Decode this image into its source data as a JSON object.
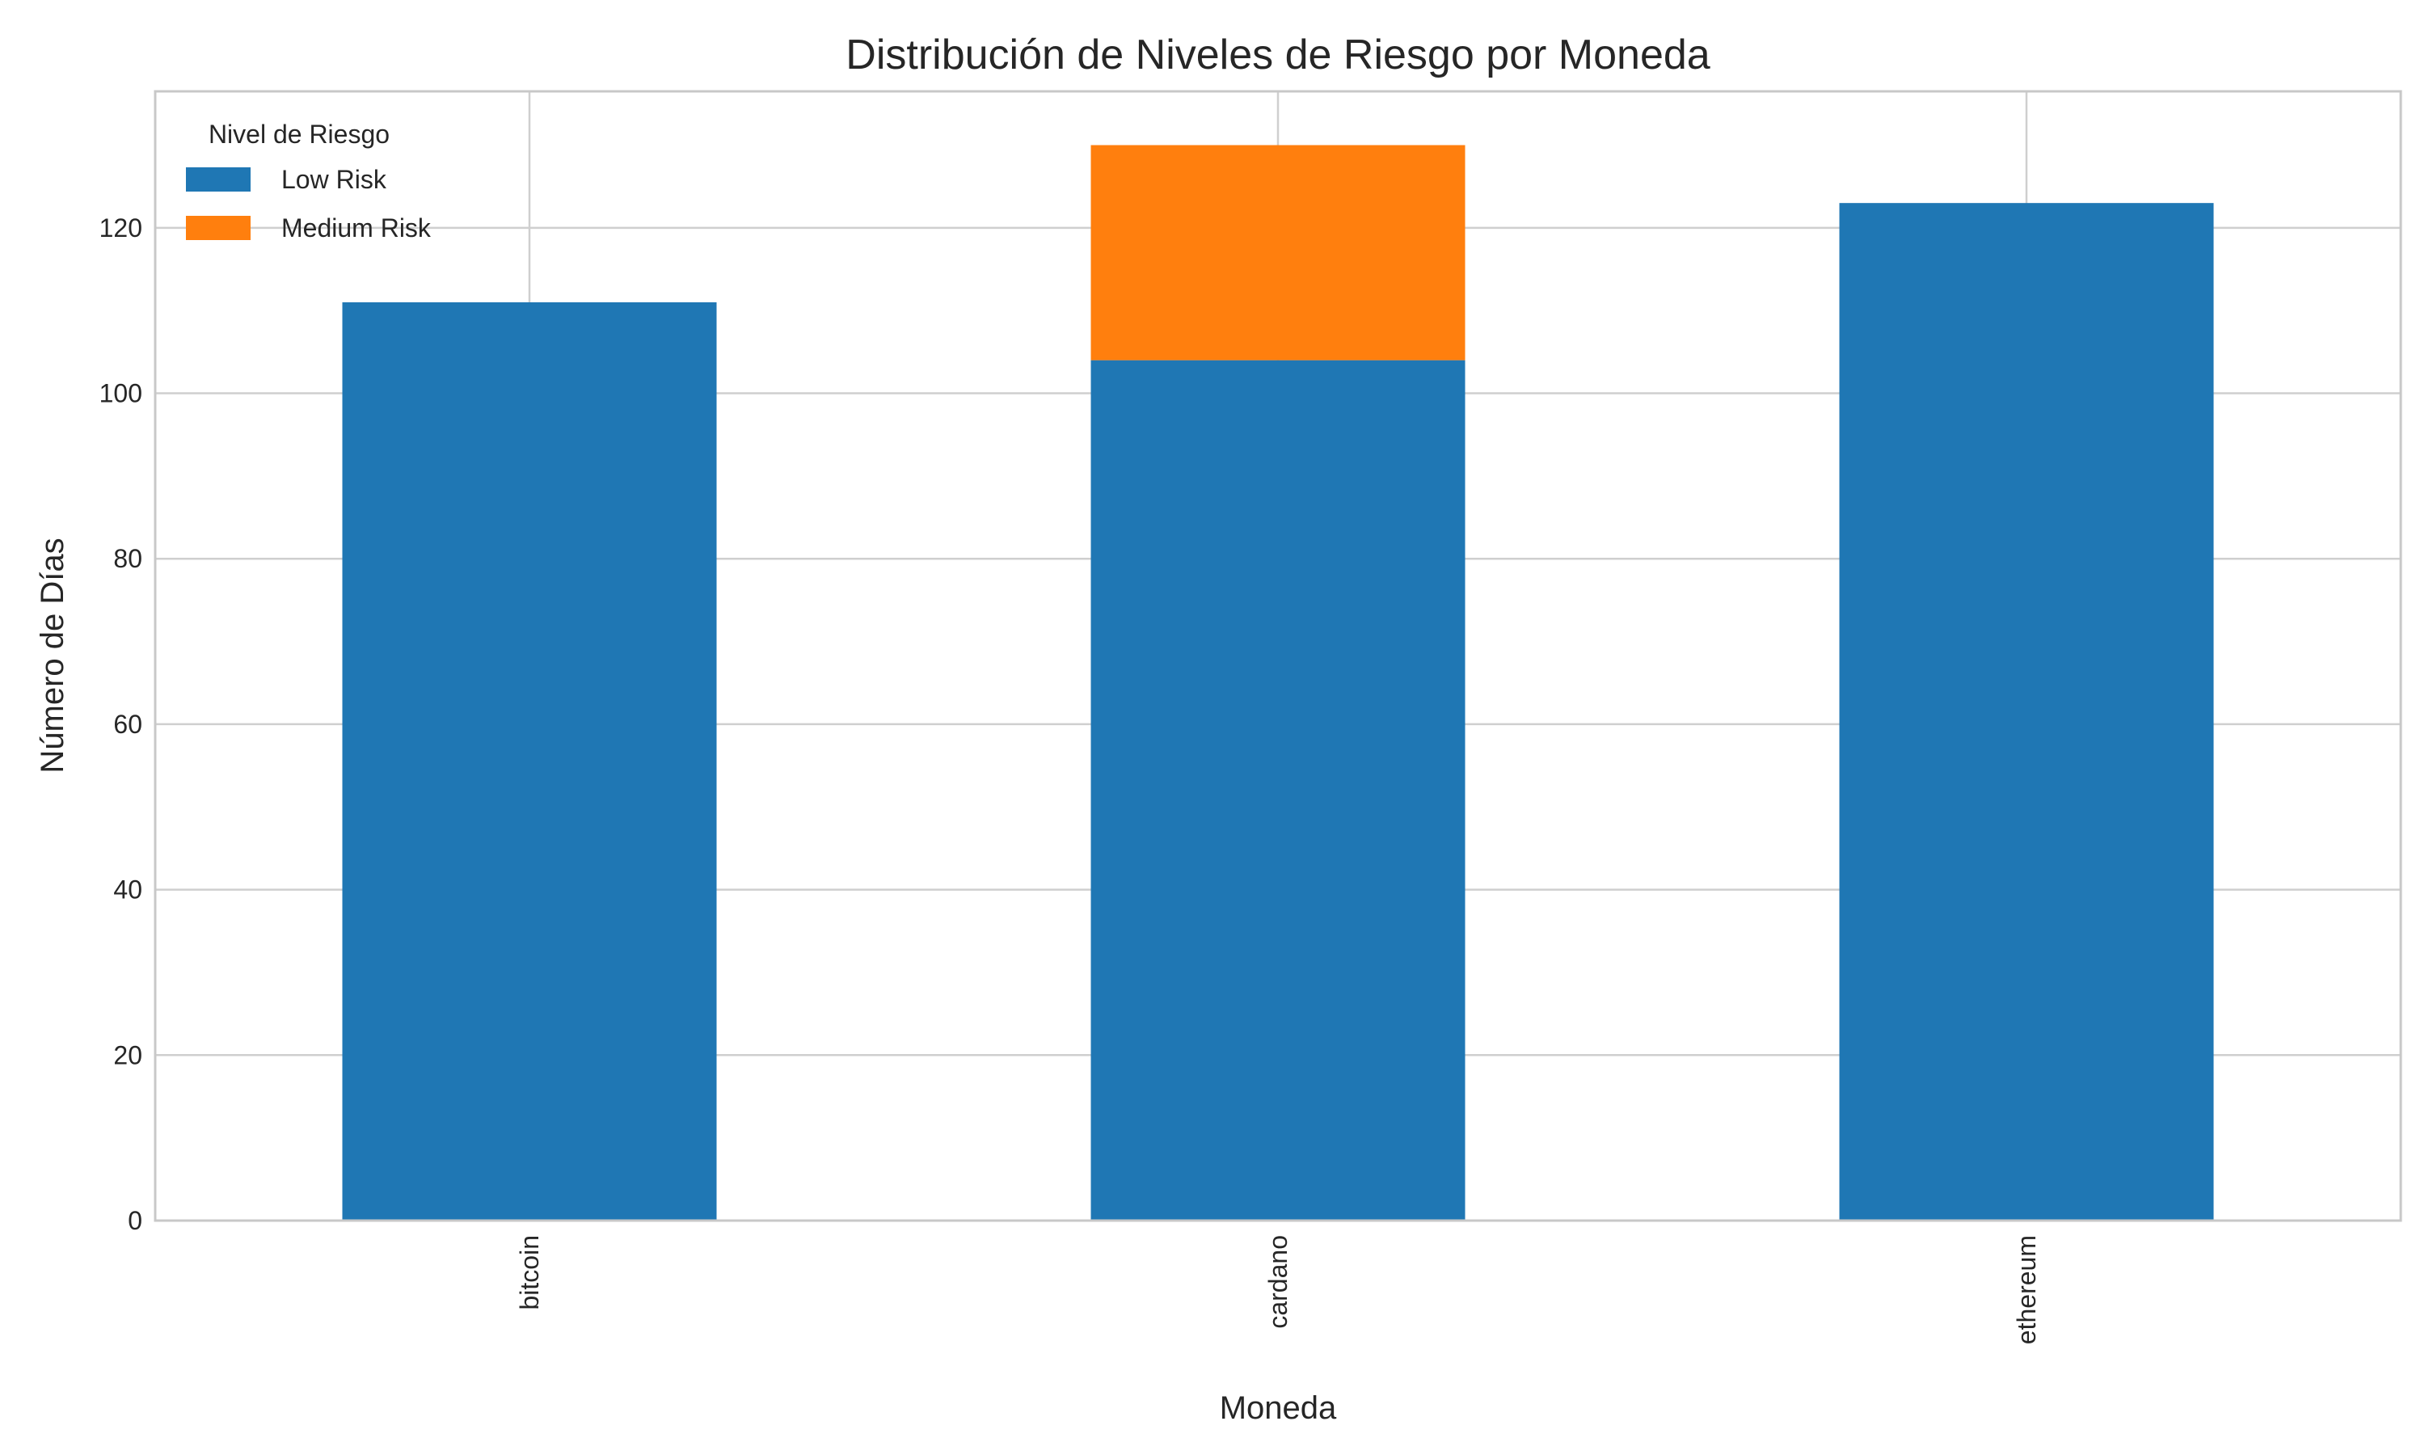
{
  "chart_data": {
    "type": "bar",
    "stacked": true,
    "title": "Distribución de Niveles de Riesgo por Moneda",
    "xlabel": "Moneda",
    "ylabel": "Número de Días",
    "categories": [
      "bitcoin",
      "cardano",
      "ethereum"
    ],
    "series": [
      {
        "name": "Low Risk",
        "values": [
          111,
          104,
          123
        ],
        "color": "#1f77b4"
      },
      {
        "name": "Medium Risk",
        "values": [
          0,
          26,
          0
        ],
        "color": "#ff7f0e"
      }
    ],
    "ylim": [
      0,
      136.5
    ],
    "yticks": [
      0,
      20,
      40,
      60,
      80,
      100,
      120
    ],
    "grid": true,
    "legend": {
      "title": "Nivel de Riesgo",
      "position": "top-left"
    },
    "tick_label_rotation": "vertical"
  }
}
